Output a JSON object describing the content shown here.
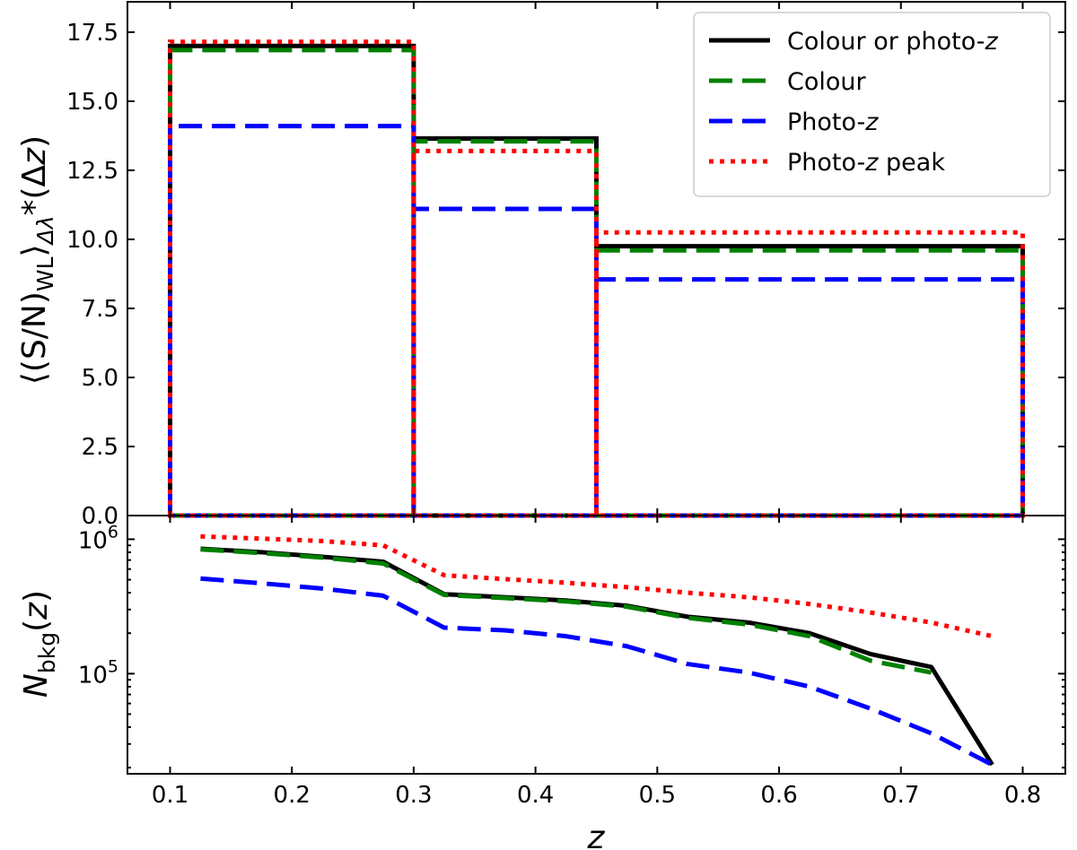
{
  "chart_data": [
    {
      "type": "step",
      "panel": "top",
      "ylabel": "⟨(S/N)WL⟩Δλ*(Δz)",
      "ylim": [
        0,
        18.6
      ],
      "xlim": [
        0.065,
        0.835
      ],
      "yticks": [
        {
          "value": 0.0,
          "label": "0.0"
        },
        {
          "value": 2.5,
          "label": "2.5"
        },
        {
          "value": 5.0,
          "label": "5.0"
        },
        {
          "value": 7.5,
          "label": "7.5"
        },
        {
          "value": 10.0,
          "label": "10.0"
        },
        {
          "value": 12.5,
          "label": "12.5"
        },
        {
          "value": 15.0,
          "label": "15.0"
        },
        {
          "value": 17.5,
          "label": "17.5"
        }
      ],
      "bin_edges": [
        0.1,
        0.3,
        0.45,
        0.8
      ],
      "legend_position": "top-right",
      "series": [
        {
          "name": "Colour or photo-z",
          "style": "solid",
          "color": "#000000",
          "values": [
            17.0,
            13.65,
            9.75
          ]
        },
        {
          "name": "Colour",
          "style": "dashed",
          "color": "#008000",
          "values": [
            16.85,
            13.55,
            9.6
          ]
        },
        {
          "name": "Photo-z",
          "style": "dashed",
          "color": "#0000ff",
          "values": [
            14.1,
            11.1,
            8.55
          ]
        },
        {
          "name": "Photo-z peak",
          "style": "dotted",
          "color": "#ff0000",
          "values": [
            17.15,
            13.2,
            10.25
          ]
        }
      ],
      "legend": [
        {
          "id": "colour-or-photoz",
          "prefix": "Colour or photo-",
          "italic": "z",
          "suffix": ""
        },
        {
          "id": "colour",
          "prefix": "Colour",
          "italic": "",
          "suffix": ""
        },
        {
          "id": "photoz",
          "prefix": "Photo-",
          "italic": "z",
          "suffix": ""
        },
        {
          "id": "photoz-peak",
          "prefix": "Photo-",
          "italic": "z",
          "suffix": " peak"
        }
      ]
    },
    {
      "type": "line",
      "panel": "bottom",
      "ylabel": "Nbkg(z)",
      "xlabel": "z",
      "yscale": "log",
      "ylim": [
        18000,
        1500000
      ],
      "xlim": [
        0.065,
        0.835
      ],
      "yticks": [
        {
          "value": 100000,
          "label": "10^5"
        },
        {
          "value": 1000000,
          "label": "10^6"
        }
      ],
      "xticks": [
        {
          "value": 0.1,
          "label": "0.1"
        },
        {
          "value": 0.2,
          "label": "0.2"
        },
        {
          "value": 0.3,
          "label": "0.3"
        },
        {
          "value": 0.4,
          "label": "0.4"
        },
        {
          "value": 0.5,
          "label": "0.5"
        },
        {
          "value": 0.6,
          "label": "0.6"
        },
        {
          "value": 0.7,
          "label": "0.7"
        },
        {
          "value": 0.8,
          "label": "0.8"
        }
      ],
      "x": [
        0.125,
        0.175,
        0.225,
        0.275,
        0.325,
        0.375,
        0.425,
        0.475,
        0.525,
        0.575,
        0.625,
        0.675,
        0.725,
        0.775
      ],
      "series": [
        {
          "name": "Colour or photo-z",
          "style": "solid",
          "color": "#000000",
          "values": [
            850000,
            800000,
            740000,
            680000,
            390000,
            370000,
            350000,
            320000,
            265000,
            240000,
            200000,
            140000,
            112000,
            21000
          ]
        },
        {
          "name": "Colour",
          "style": "dashed",
          "color": "#008000",
          "values": [
            840000,
            790000,
            730000,
            660000,
            385000,
            365000,
            345000,
            315000,
            260000,
            232000,
            190000,
            125000,
            102000,
            null
          ]
        },
        {
          "name": "Photo-z",
          "style": "dashed",
          "color": "#0000ff",
          "values": [
            510000,
            470000,
            430000,
            380000,
            220000,
            210000,
            190000,
            160000,
            118000,
            102000,
            80000,
            55000,
            36000,
            21000
          ]
        },
        {
          "name": "Photo-z peak",
          "style": "dotted",
          "color": "#ff0000",
          "values": [
            1050000,
            1010000,
            970000,
            900000,
            540000,
            505000,
            475000,
            440000,
            400000,
            370000,
            330000,
            285000,
            240000,
            190000
          ]
        }
      ]
    }
  ]
}
